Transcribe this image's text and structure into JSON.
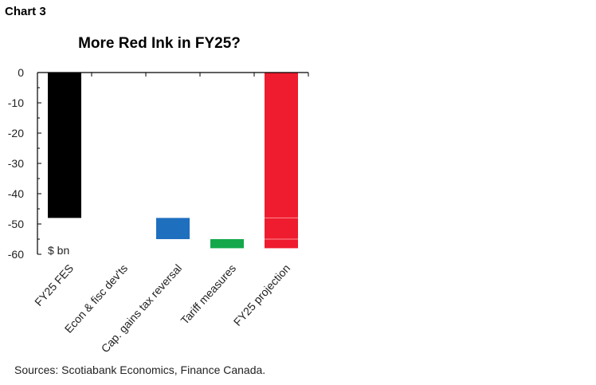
{
  "header": {
    "chart_number": "Chart 3",
    "title": "More Red Ink in FY25?"
  },
  "footer": {
    "source": "Sources: Scotiabank Economics, Finance Canada."
  },
  "chart_data": {
    "type": "bar",
    "subtype": "waterfall",
    "title": "More Red Ink in FY25?",
    "ylabel": "",
    "unit_label": "$ bn",
    "ylim": [
      -60,
      0
    ],
    "yticks": [
      0,
      -10,
      -20,
      -30,
      -40,
      -50,
      -60
    ],
    "grid": false,
    "categories": [
      "FY25 FES",
      "Econ & fisc dev'ts",
      "Cap. gains tax reversal",
      "Tariff measures",
      "FY25 projection"
    ],
    "bars": [
      {
        "category": "FY25 FES",
        "from": 0,
        "to": -48,
        "color": "#000000"
      },
      {
        "category": "Econ & fisc dev'ts",
        "from": -48,
        "to": -48,
        "color": "#ffffff"
      },
      {
        "category": "Cap. gains tax reversal",
        "from": -48,
        "to": -55,
        "color": "#1f6fbf"
      },
      {
        "category": "Tariff measures",
        "from": -55,
        "to": -58,
        "color": "#14a84b"
      },
      {
        "category": "FY25 projection",
        "from": 0,
        "to": -58,
        "color": "#ee1c2e",
        "segments": [
          -48,
          -55
        ]
      }
    ]
  }
}
